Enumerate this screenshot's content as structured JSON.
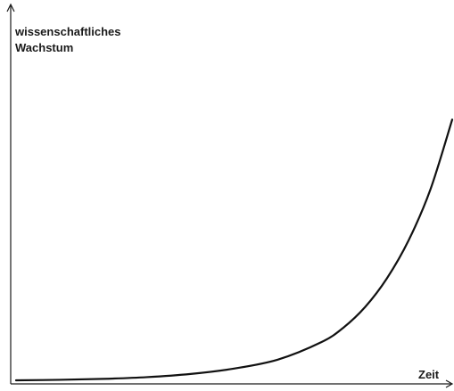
{
  "chart_data": {
    "type": "line",
    "title": "",
    "ylabel_lines": [
      "wissenschaftliches",
      "Wachstum"
    ],
    "xlabel": "Zeit",
    "grid": false,
    "legend": "none",
    "ticks": "none",
    "xlim": [
      0,
      1
    ],
    "ylim": [
      0,
      1
    ],
    "series": [
      {
        "color": "#111111",
        "x": [
          0,
          0.1,
          0.2,
          0.3,
          0.4,
          0.5,
          0.6,
          0.7,
          0.75,
          0.8,
          0.85,
          0.9,
          0.95,
          1.0
        ],
        "y": [
          0.0,
          0.0015,
          0.0045,
          0.01,
          0.02,
          0.037,
          0.065,
          0.12,
          0.165,
          0.23,
          0.32,
          0.44,
          0.6,
          0.82
        ]
      }
    ]
  }
}
